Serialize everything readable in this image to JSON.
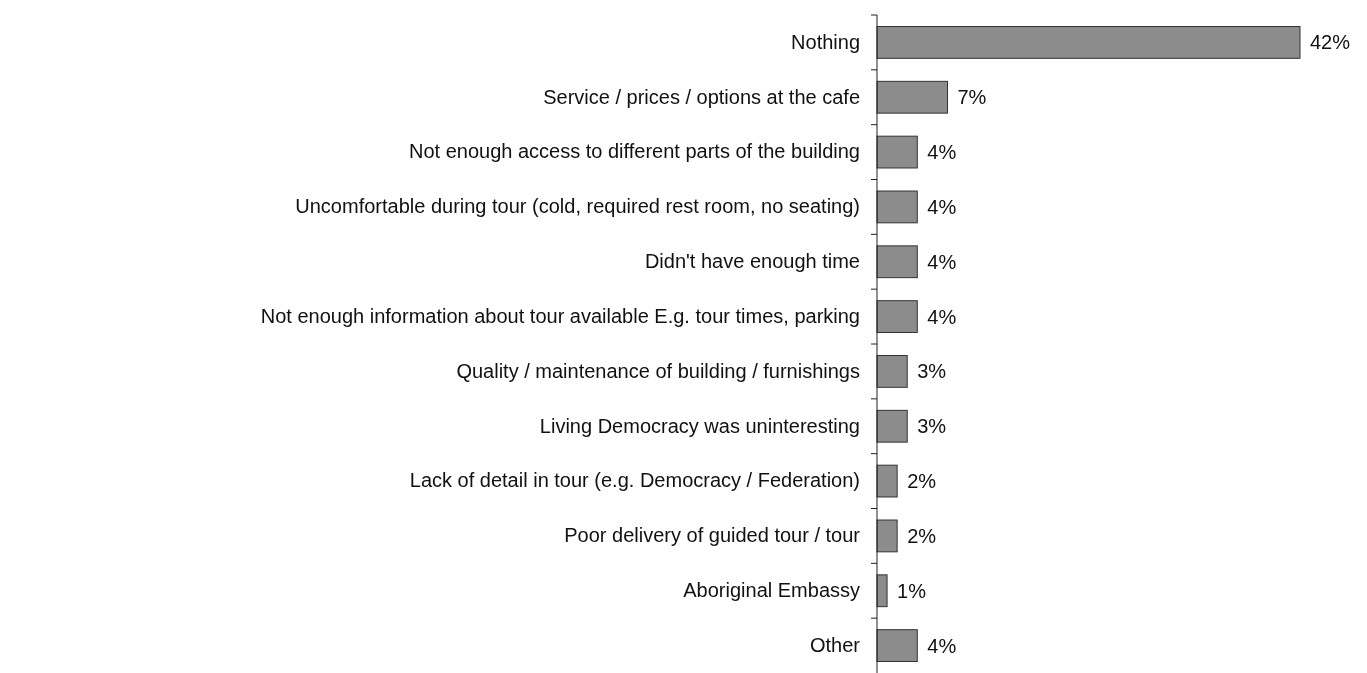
{
  "chart_data": {
    "type": "bar",
    "orientation": "horizontal",
    "categories": [
      "Nothing",
      "Service / prices / options at the cafe",
      "Not enough access to different parts of the building",
      "Uncomfortable during tour (cold, required rest room, no seating)",
      "Didn't have enough time",
      "Not enough information about tour available E.g. tour times, parking",
      "Quality / maintenance of building / furnishings",
      "Living Democracy was uninteresting",
      "Lack of detail in tour (e.g. Democracy / Federation)",
      "Poor delivery of guided tour / tour",
      "Aboriginal Embassy",
      "Other"
    ],
    "values": [
      42,
      7,
      4,
      4,
      4,
      4,
      3,
      3,
      2,
      2,
      1,
      4
    ],
    "value_labels": [
      "42%",
      "7%",
      "4%",
      "4%",
      "4%",
      "4%",
      "3%",
      "3%",
      "2%",
      "2%",
      "1%",
      "4%"
    ],
    "color": "#8c8c8c"
  }
}
